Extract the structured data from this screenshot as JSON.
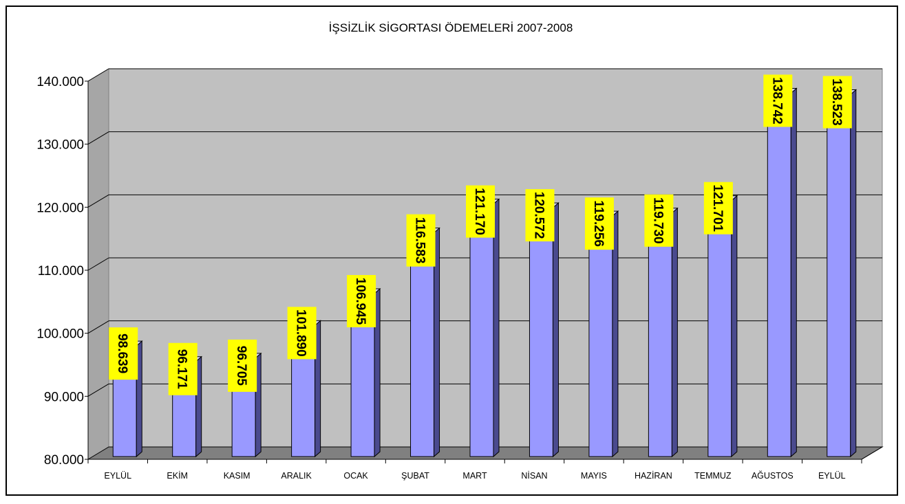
{
  "chart_data": {
    "type": "bar",
    "title": "İŞSİZLİK SİGORTASI ÖDEMELERİ 2007-2008",
    "categories": [
      "EYLÜL",
      "EKİM",
      "KASIM",
      "ARALIK",
      "OCAK",
      "ŞUBAT",
      "MART",
      "NİSAN",
      "MAYIS",
      "HAZİRAN",
      "TEMMUZ",
      "AĞUSTOS",
      "EYLÜL"
    ],
    "values": [
      98639,
      96171,
      96705,
      101890,
      106945,
      116583,
      121170,
      120572,
      119256,
      119730,
      121701,
      138742,
      138523
    ],
    "value_labels": [
      "98.639",
      "96.171",
      "96.705",
      "101.890",
      "106.945",
      "116.583",
      "121.170",
      "120.572",
      "119.256",
      "119.730",
      "121.701",
      "138.742",
      "138.523"
    ],
    "ylim": [
      80000,
      140000
    ],
    "yticks": [
      80000,
      90000,
      100000,
      110000,
      120000,
      130000,
      140000
    ],
    "ytick_labels": [
      "80.000",
      "90.000",
      "100.000",
      "110.000",
      "120.000",
      "130.000",
      "140.000"
    ],
    "xlabel": "",
    "ylabel": "",
    "grid": true,
    "legend": "none",
    "style": "3d-column",
    "colors": {
      "bar_front": "#9999ff",
      "bar_side": "#4a4a8e",
      "bar_top": "#ccccff",
      "plot_wall": "#c0c0c0",
      "plot_floor": "#808080",
      "label_background": "#ffff00",
      "gridline": "#000000"
    }
  }
}
